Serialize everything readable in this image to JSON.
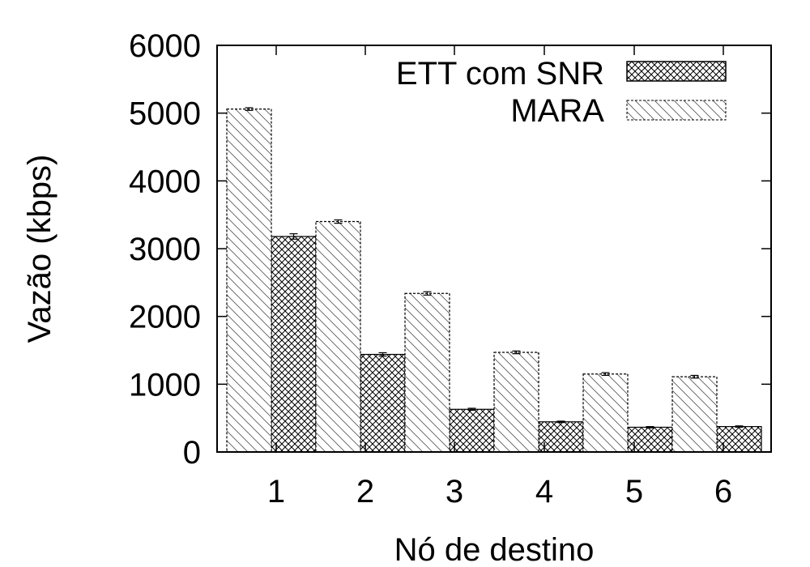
{
  "chart_data": {
    "type": "bar",
    "title": "",
    "xlabel": "Nó de destino",
    "ylabel": "Vazão (kbps)",
    "ylim": [
      0,
      6000
    ],
    "yticks": [
      "0",
      "1000",
      "2000",
      "3000",
      "4000",
      "5000",
      "6000"
    ],
    "categories": [
      "1",
      "2",
      "3",
      "4",
      "5",
      "6"
    ],
    "legend_position": "top-right",
    "grid": false,
    "series": [
      {
        "name": "ETT com SNR",
        "pattern": "crosshatch",
        "values": [
          3180,
          1440,
          630,
          445,
          365,
          375
        ],
        "errors": [
          40,
          25,
          15,
          10,
          10,
          10
        ]
      },
      {
        "name": "MARA",
        "pattern": "diagonal",
        "values": [
          5060,
          3400,
          2340,
          1470,
          1150,
          1110
        ],
        "errors": [
          20,
          25,
          25,
          20,
          20,
          20
        ]
      }
    ]
  }
}
